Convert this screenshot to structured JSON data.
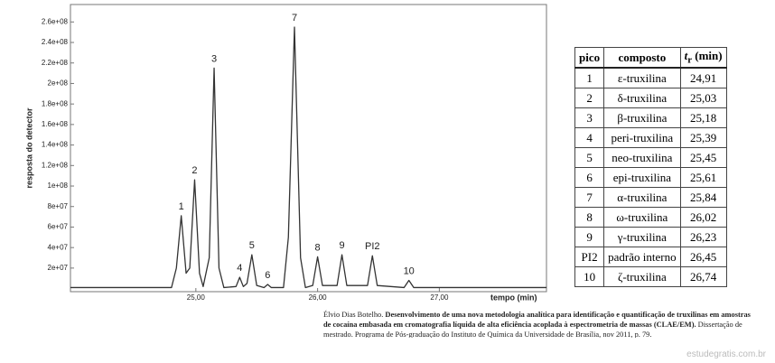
{
  "chart_data": {
    "type": "line",
    "y_label": "resposta do detector",
    "x_label": "tempo (min)",
    "xlim": [
      23.97,
      27.88
    ],
    "ylim": [
      -3000000,
      277000000
    ],
    "xticks": [
      {
        "value": 25,
        "label": "25,00"
      },
      {
        "value": 26,
        "label": "26,00"
      },
      {
        "value": 27,
        "label": "27,00"
      }
    ],
    "yticks": [
      {
        "value": 20000000,
        "label": "2e+07"
      },
      {
        "value": 40000000,
        "label": "4e+07"
      },
      {
        "value": 60000000,
        "label": "6e+07"
      },
      {
        "value": 80000000,
        "label": "8e+07"
      },
      {
        "value": 100000000,
        "label": "1e+08"
      },
      {
        "value": 120000000,
        "label": "1.2e+08"
      },
      {
        "value": 140000000,
        "label": "1.4e+08"
      },
      {
        "value": 160000000,
        "label": "1.6e+08"
      },
      {
        "value": 180000000,
        "label": "1.8e+08"
      },
      {
        "value": 200000000,
        "label": "2e+08"
      },
      {
        "value": 220000000,
        "label": "2.2e+08"
      },
      {
        "value": 240000000,
        "label": "2.4e+08"
      },
      {
        "value": 260000000,
        "label": "2.6e+08"
      }
    ],
    "x": [
      23.97,
      24.8,
      24.84,
      24.88,
      24.92,
      24.95,
      24.99,
      25.03,
      25.06,
      25.11,
      25.15,
      25.19,
      25.23,
      25.33,
      25.36,
      25.39,
      25.42,
      25.46,
      25.5,
      25.56,
      25.59,
      25.62,
      25.72,
      25.76,
      25.81,
      25.86,
      25.9,
      25.96,
      26.0,
      26.04,
      26.16,
      26.2,
      26.24,
      26.41,
      26.45,
      26.49,
      26.71,
      26.75,
      26.79,
      27.88
    ],
    "series": [
      {
        "color": "#333333",
        "values": [
          1000000,
          1000000,
          20000000,
          71000000,
          15000000,
          20000000,
          106000000,
          15000000,
          2000000,
          30000000,
          215000000,
          20000000,
          1000000,
          2000000,
          11000000,
          2000000,
          5000000,
          33000000,
          3000000,
          1000000,
          4000000,
          1000000,
          1000000,
          50000000,
          255000000,
          30000000,
          1000000,
          3000000,
          31000000,
          3000000,
          3000000,
          33000000,
          3000000,
          3000000,
          32000000,
          3000000,
          1000000,
          8000000,
          1000000,
          1000000
        ]
      }
    ],
    "peaks": [
      {
        "label": "1",
        "x": 24.88,
        "y": 71000000
      },
      {
        "label": "2",
        "x": 24.99,
        "y": 106000000
      },
      {
        "label": "3",
        "x": 25.15,
        "y": 215000000
      },
      {
        "label": "4",
        "x": 25.36,
        "y": 11000000
      },
      {
        "label": "5",
        "x": 25.46,
        "y": 33000000
      },
      {
        "label": "6",
        "x": 25.59,
        "y": 4000000
      },
      {
        "label": "7",
        "x": 25.81,
        "y": 255000000
      },
      {
        "label": "8",
        "x": 26.0,
        "y": 31000000
      },
      {
        "label": "9",
        "x": 26.2,
        "y": 33000000
      },
      {
        "label": "PI2",
        "x": 26.45,
        "y": 32000000
      },
      {
        "label": "10",
        "x": 26.75,
        "y": 8000000
      }
    ]
  },
  "table": {
    "header": [
      "pico",
      "composto"
    ],
    "tr_header": {
      "symbol": "t",
      "subscript": "r",
      "unit": " (min)"
    },
    "rows": [
      [
        "1",
        "ε-truxilina",
        "24,91"
      ],
      [
        "2",
        "δ-truxilina",
        "25,03"
      ],
      [
        "3",
        "β-truxilina",
        "25,18"
      ],
      [
        "4",
        "peri-truxilina",
        "25,39"
      ],
      [
        "5",
        "neo-truxilina",
        "25,45"
      ],
      [
        "6",
        "epi-truxilina",
        "25,61"
      ],
      [
        "7",
        "α-truxilina",
        "25,84"
      ],
      [
        "8",
        "ω-truxilina",
        "26,02"
      ],
      [
        "9",
        "γ-truxilina",
        "26,23"
      ],
      [
        "PI2",
        "padrão interno",
        "26,45"
      ],
      [
        "10",
        "ζ-truxilina",
        "26,74"
      ]
    ]
  },
  "caption": {
    "author": "Élvio Dias Botelho.",
    "title": "Desenvolvimento de uma nova metodologia analítica para identificação e quantificação de truxilinas em amostras de cocaína embasada em cromatografia líquida de alta eficiência acoplada à espectrometria de massas (CLAE/EM).",
    "rest": "Dissertação de mestrado. Programa de Pós-graduação do Instituto de Química da Universidade de Brasília, nov 2011, p. 79."
  },
  "watermark": "estudegratis.com.br"
}
